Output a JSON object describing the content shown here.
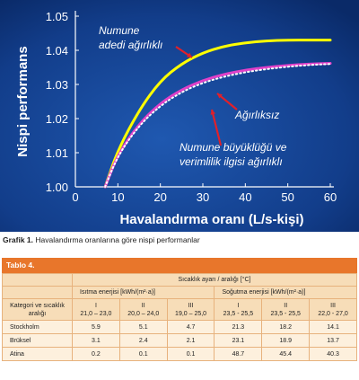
{
  "chart_data": {
    "type": "line",
    "title": "",
    "xlabel": "Havalandırma oranı (L/s-kişi)",
    "ylabel": "Nispi performans",
    "xlim": [
      0,
      60
    ],
    "ylim": [
      1.0,
      1.05
    ],
    "xticks": [
      "0",
      "10",
      "20",
      "30",
      "40",
      "50",
      "60"
    ],
    "yticks": [
      "1.00",
      "1.01",
      "1.02",
      "1.03",
      "1.04",
      "1.05"
    ],
    "grid": false,
    "series": [
      {
        "name": "Numune adedi ağırlıklı",
        "color": "#ffff00",
        "style": "solid",
        "x": [
          7,
          10,
          15,
          20,
          25,
          30,
          35,
          40,
          45,
          50,
          55,
          60
        ],
        "y": [
          1.0,
          1.0108,
          1.0225,
          1.0311,
          1.0361,
          1.0393,
          1.0412,
          1.0422,
          1.0428,
          1.043,
          1.043,
          1.043
        ]
      },
      {
        "name": "Ağırlıksız",
        "color": "#e040c8",
        "style": "solid",
        "x": [
          7,
          10,
          15,
          20,
          25,
          30,
          35,
          40,
          45,
          50,
          55,
          60
        ],
        "y": [
          1.0,
          1.0095,
          1.0185,
          1.0245,
          1.0285,
          1.0312,
          1.033,
          1.0342,
          1.035,
          1.0356,
          1.036,
          1.0362
        ]
      },
      {
        "name": "Numune büyüklüğü ve verimlilik ilgisi ağırlıklı",
        "color": "#ffffff",
        "style": "dotted",
        "x": [
          7,
          10,
          15,
          20,
          25,
          30,
          35,
          40,
          45,
          50,
          55,
          60
        ],
        "y": [
          1.0,
          1.0092,
          1.018,
          1.0238,
          1.0278,
          1.0305,
          1.0323,
          1.0336,
          1.0345,
          1.0352,
          1.0357,
          1.036
        ]
      }
    ],
    "annotations": [
      "Numune",
      "adedi ağırlıklı",
      "Ağırlıksız",
      "Numune büyüklüğü ve",
      "verimlilik ilgisi ağırlıklı"
    ]
  },
  "caption": {
    "label": "Grafik 1.",
    "text": "Havalandırma oranlarına göre nispi performanlar"
  },
  "table": {
    "title": "Tablo 4.",
    "header_temp": "Sıcaklık ayarı / aralığı [°C]",
    "header_heating": "Isıtma enerjisi [kWh/(m²·a)]",
    "header_cooling": "Soğutma enerjisi [kWh/(m²·a)]",
    "header_category": "Kategori ve sıcaklık aralığı",
    "categories": [
      {
        "roman": "I",
        "range": "21,0 – 23,0"
      },
      {
        "roman": "II",
        "range": "20,0 – 24,0"
      },
      {
        "roman": "III",
        "range": "19,0 – 25,0"
      },
      {
        "roman": "I",
        "range": "23,5 - 25,5"
      },
      {
        "roman": "II",
        "range": "23,5 - 25,5"
      },
      {
        "roman": "III",
        "range": "22,0 - 27,0"
      }
    ],
    "rows": [
      {
        "city": "Stockholm",
        "values": [
          "5.9",
          "5.1",
          "4.7",
          "21.3",
          "18.2",
          "14.1"
        ]
      },
      {
        "city": "Brüksel",
        "values": [
          "3.1",
          "2.4",
          "2.1",
          "23.1",
          "18.9",
          "13.7"
        ]
      },
      {
        "city": "Atina",
        "values": [
          "0.2",
          "0.1",
          "0.1",
          "48.7",
          "45.4",
          "40.3"
        ]
      }
    ]
  }
}
